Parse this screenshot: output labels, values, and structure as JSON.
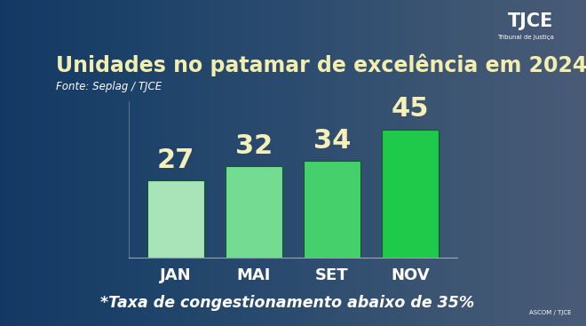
{
  "chart_data": {
    "type": "bar",
    "title": "Unidades no patamar de excelência em 2024",
    "subtitle": "Fonte: Seplag / TJCE",
    "categories": [
      "JAN",
      "MAI",
      "SET",
      "NOV"
    ],
    "values": [
      27,
      32,
      34,
      45
    ],
    "colors": [
      "#a8e4b8",
      "#74dc92",
      "#45d06c",
      "#1fc94a"
    ],
    "ylim": [
      0,
      55
    ],
    "yticks": [],
    "grid": false,
    "data_labels": true,
    "tick_labels": "x",
    "annotations": [
      "*Taxa de congestionamento abaixo de 35%",
      "TJCE",
      "Tribunal de Justiça",
      "ASCOM / TJCE"
    ]
  }
}
